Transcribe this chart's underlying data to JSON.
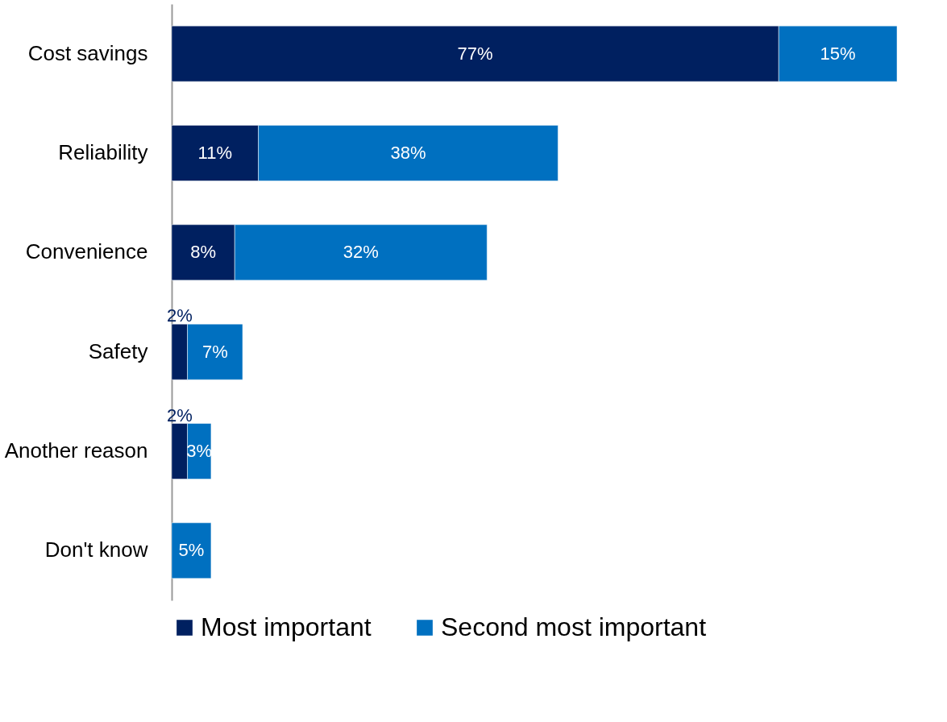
{
  "chart_data": {
    "type": "bar",
    "orientation": "horizontal",
    "stacked": true,
    "legend": "bottom",
    "categories": [
      "Cost savings",
      "Reliability",
      "Convenience",
      "Safety",
      "Another reason",
      "Don't know"
    ],
    "series": [
      {
        "name": "Most important",
        "color": "#002060",
        "values": [
          77,
          11,
          8,
          2,
          2,
          null
        ],
        "value_labels": [
          "77%",
          "11%",
          "8%",
          "2%",
          "2%",
          null
        ]
      },
      {
        "name": "Second most important",
        "color": "#0070c0",
        "values": [
          15,
          38,
          32,
          7,
          3,
          5
        ],
        "value_labels": [
          "15%",
          "38%",
          "32%",
          "7%",
          "3%",
          "5%"
        ]
      }
    ]
  }
}
